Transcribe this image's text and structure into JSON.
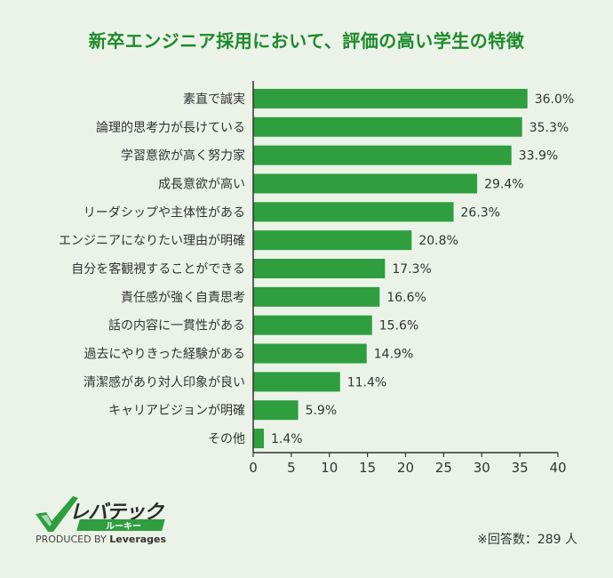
{
  "logo": {
    "brand": "レバテック",
    "sub": "ルーキー",
    "produced_by": "PRODUCED BY",
    "company": "Leverages",
    "check_color": "#2e9e3e"
  },
  "note": "※回答数：289 人",
  "chart_data": {
    "type": "bar",
    "orientation": "horizontal",
    "title": "新卒エンジニア採用において、評価の高い学生の特徴",
    "categories": [
      "素直で誠実",
      "論理的思考力が長けている",
      "学習意欲が高く努力家",
      "成長意欲が高い",
      "リーダシップや主体性がある",
      "エンジニアになりたい理由が明確",
      "自分を客観視することができる",
      "責任感が強く自責思考",
      "話の内容に一貫性がある",
      "過去にやりきった経験がある",
      "清潔感があり対人印象が良い",
      "キャリアビジョンが明確",
      "その他"
    ],
    "values": [
      36.0,
      35.3,
      33.9,
      29.4,
      26.3,
      20.8,
      17.3,
      16.6,
      15.6,
      14.9,
      11.4,
      5.9,
      1.4
    ],
    "value_labels": [
      "36.0%",
      "35.3%",
      "33.9%",
      "29.4%",
      "26.3%",
      "20.8%",
      "17.3%",
      "16.6%",
      "15.6%",
      "14.9%",
      "11.4%",
      "5.9%",
      "1.4%"
    ],
    "xlim": [
      0,
      40
    ],
    "xticks": [
      0,
      5,
      10,
      15,
      20,
      25,
      30,
      35,
      40
    ],
    "xlabel": "",
    "ylabel": "",
    "bar_color": "#2e9e3e",
    "grid": false
  }
}
